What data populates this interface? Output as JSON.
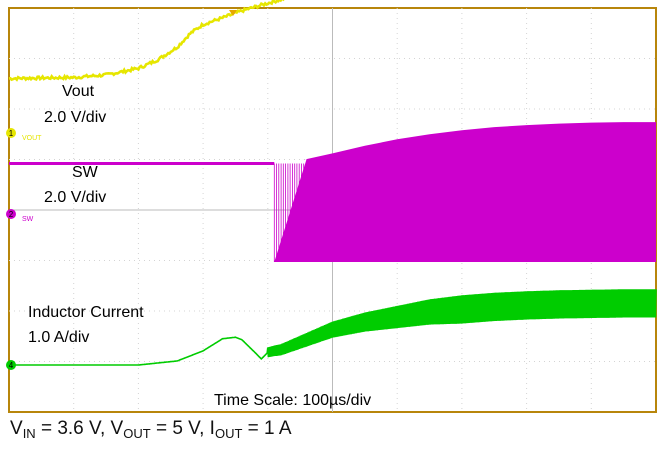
{
  "chart_data": {
    "type": "line",
    "x_unit": "µs",
    "grid": true,
    "annotations": {
      "vout_name": "Vout",
      "vout_scale": "2.0 V/div",
      "sw_name": "SW",
      "sw_scale": "2.0 V/div",
      "il_name": "Inductor Current",
      "il_scale": "1.0 A/div",
      "time_scale": "Time Scale: 100µs/div"
    },
    "channel_markers": [
      {
        "id": "1",
        "label": "VOUT"
      },
      {
        "id": "2",
        "label": "SW"
      },
      {
        "id": "4",
        "label": ""
      }
    ],
    "series": [
      {
        "name": "Vout",
        "color": "#e6e600",
        "unit": "div",
        "x": [
          0,
          100,
          150,
          200,
          230,
          260,
          280,
          300,
          330,
          360,
          400,
          450,
          500,
          550,
          600,
          650,
          700,
          750,
          800,
          850,
          900,
          950,
          1000
        ],
        "y": [
          1.08,
          1.1,
          1.15,
          1.28,
          1.45,
          1.7,
          1.97,
          2.15,
          2.28,
          2.42,
          2.57,
          2.75,
          2.92,
          3.08,
          3.22,
          3.35,
          3.45,
          3.51,
          3.55,
          3.57,
          3.58,
          3.59,
          3.6
        ],
        "noise": 0.03
      },
      {
        "name": "SW",
        "color": "#cc00cc",
        "unit": "div",
        "base": 1.0,
        "envelope_x": [
          0,
          410,
          450,
          500,
          550,
          600,
          650,
          700,
          750,
          800,
          850,
          900,
          950,
          1000
        ],
        "envelope_top": [
          1.0,
          1.0,
          1.06,
          1.2,
          1.35,
          1.48,
          1.58,
          1.66,
          1.72,
          1.76,
          1.79,
          1.81,
          1.82,
          1.82
        ],
        "bottom": -0.95,
        "burst_start": 410,
        "burst_end": 460
      },
      {
        "name": "Inductor Current",
        "color": "#00cc00",
        "unit": "div",
        "x": [
          0,
          200,
          260,
          300,
          330,
          350,
          360,
          380,
          390,
          400,
          410,
          420,
          440,
          470,
          500,
          550,
          600,
          650,
          700,
          750,
          800,
          850,
          900,
          950,
          1000
        ],
        "y": [
          0.0,
          0.0,
          0.08,
          0.28,
          0.52,
          0.55,
          0.5,
          0.25,
          0.12,
          0.25,
          0.28,
          0.3,
          0.4,
          0.55,
          0.7,
          0.85,
          0.95,
          1.05,
          1.1,
          1.15,
          1.18,
          1.2,
          1.21,
          1.22,
          1.22
        ],
        "ripple_start": 400,
        "ripple_amp_max": 0.28
      }
    ]
  },
  "caption": {
    "vin_sym": "V",
    "vin_sub": "IN",
    "vin_val": " = 3.6 V, ",
    "vout_sym": "V",
    "vout_sub": "OUT",
    "vout_val": " = 5 V, ",
    "iout_sym": "I",
    "iout_sub": "OUT",
    "iout_val": " = 1 A"
  }
}
